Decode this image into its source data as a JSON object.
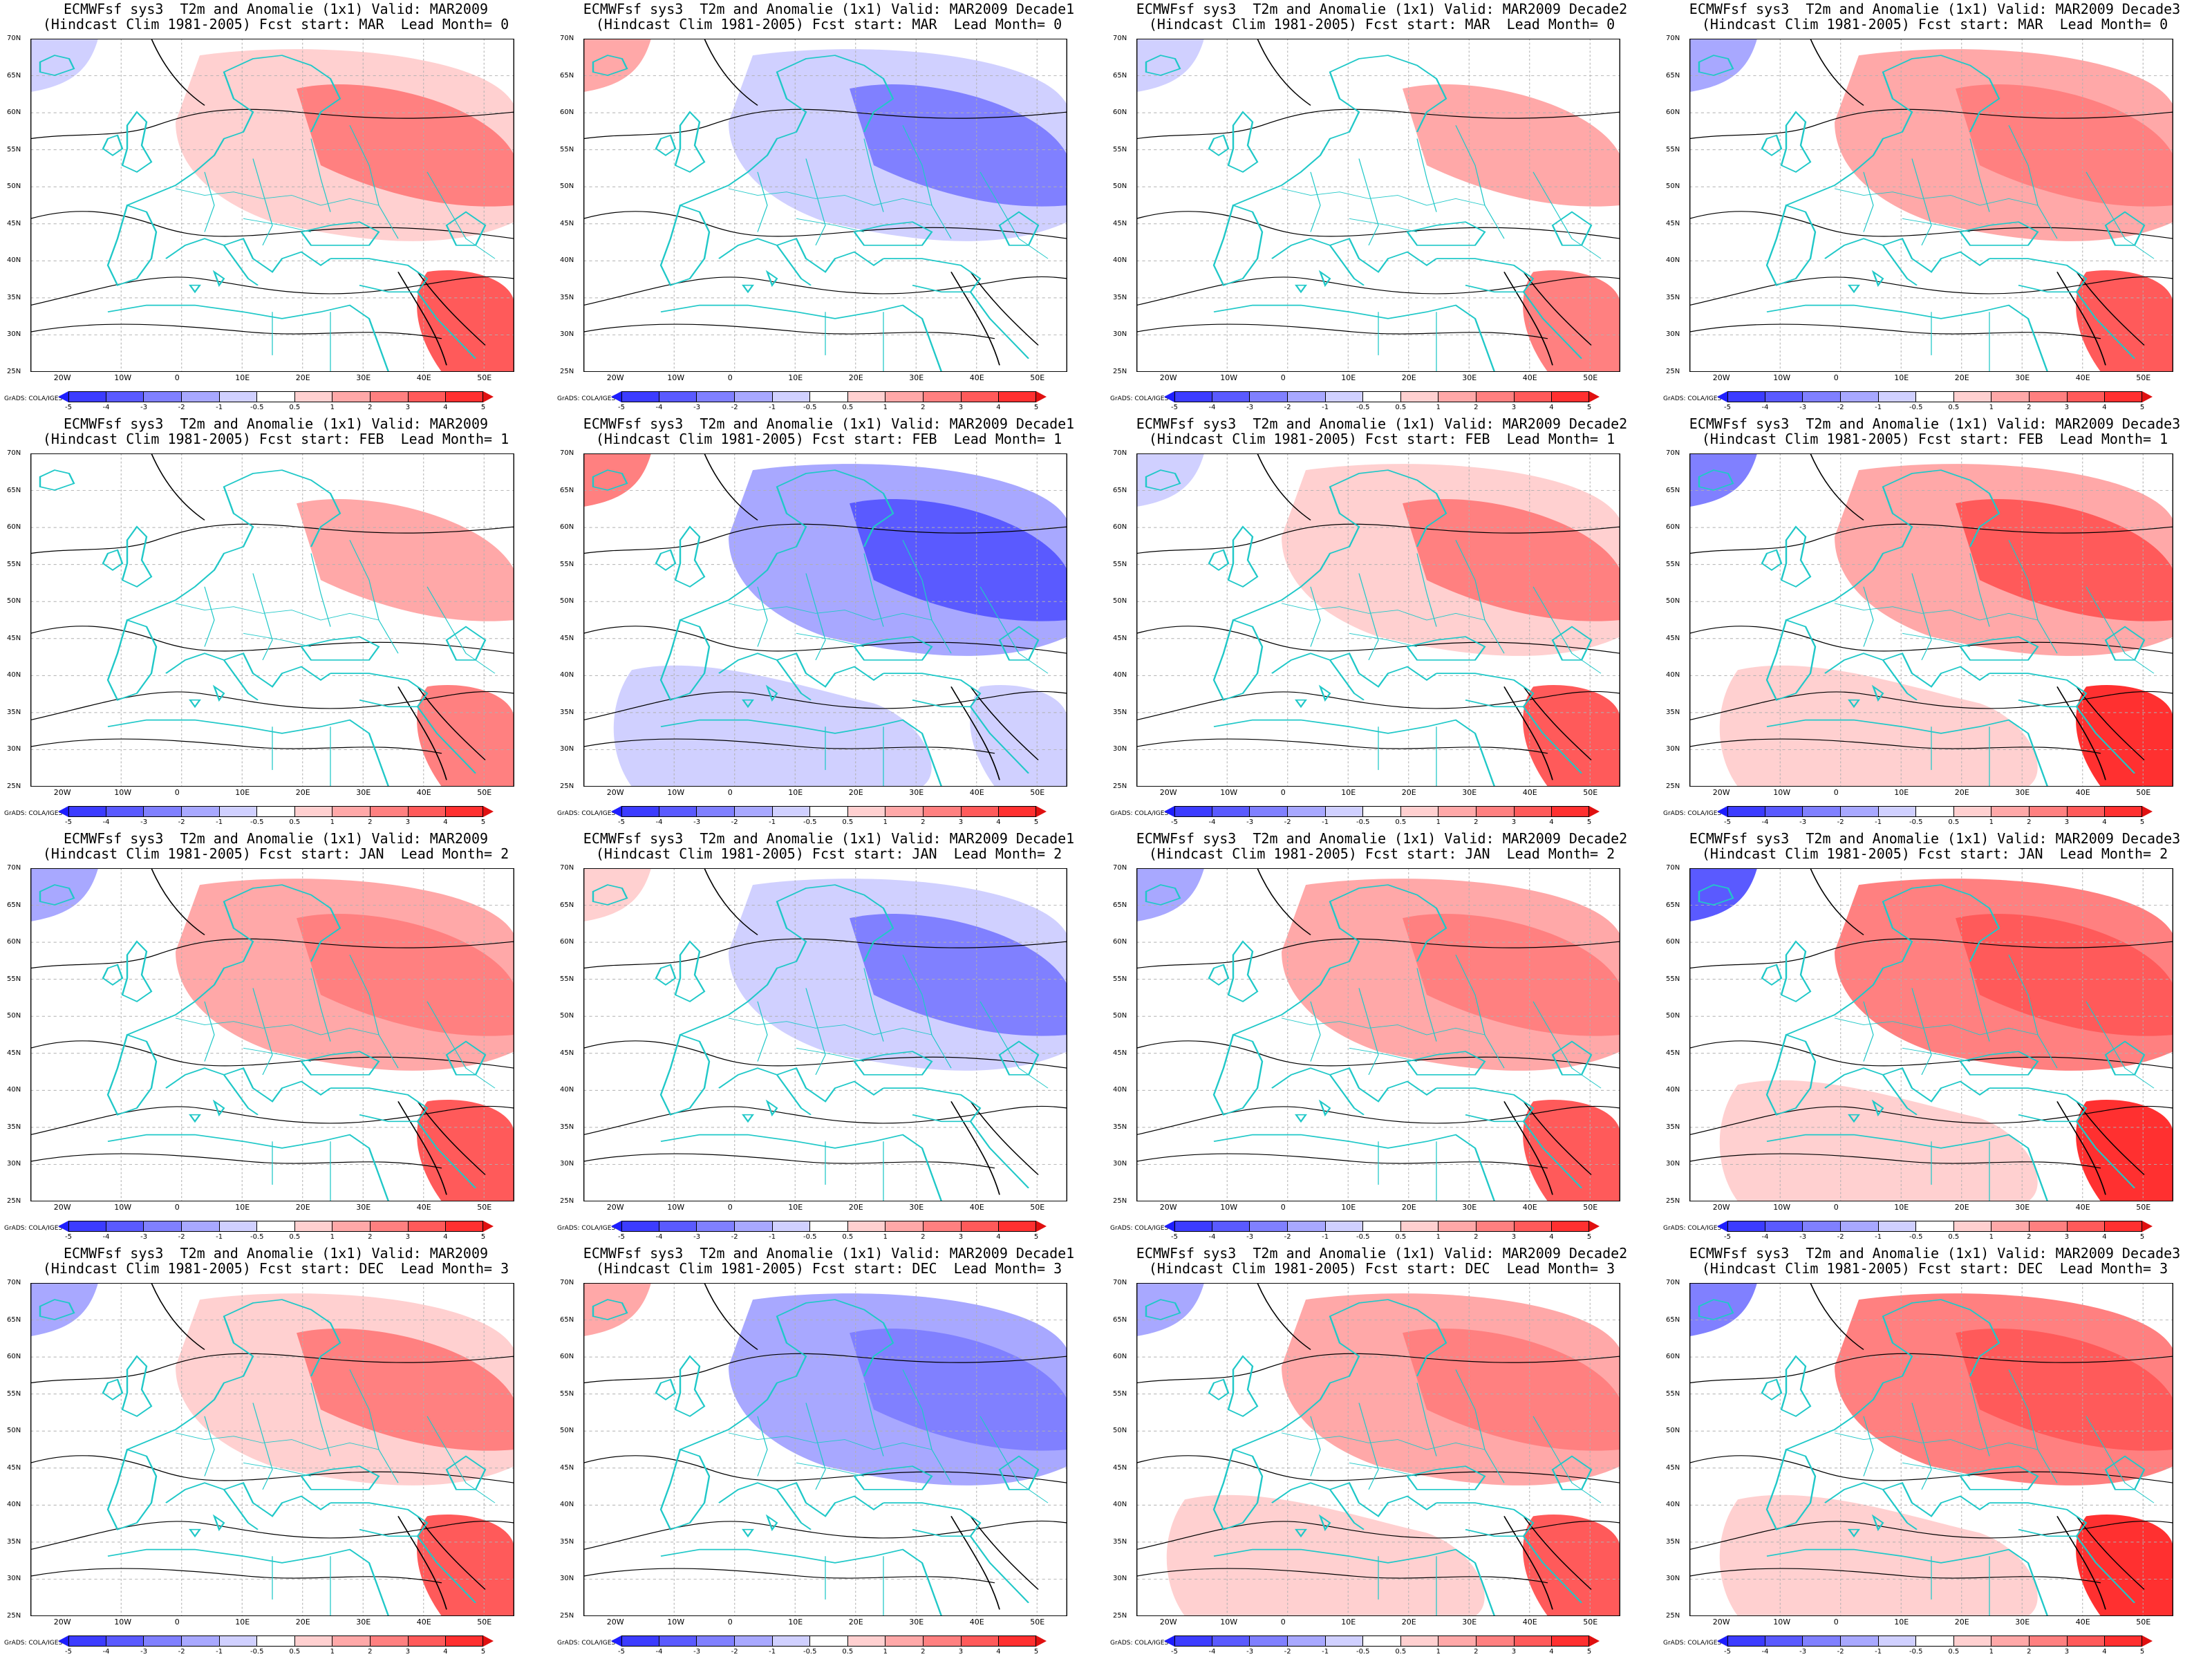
{
  "panels": [
    {
      "title1": "ECMWFsf sys3  T2m and Anomalie (1x1) Valid: MAR2009",
      "title2": "(Hindcast Clim 1981-2005) Fcst start: MAR  Lead Month= 0",
      "anomaly": 0.6
    },
    {
      "title1": "ECMWFsf sys3  T2m and Anomalie (1x1) Valid: MAR2009 Decade1",
      "title2": "(Hindcast Clim 1981-2005) Fcst start: MAR  Lead Month= 0",
      "anomaly": -0.8
    },
    {
      "title1": "ECMWFsf sys3  T2m and Anomalie (1x1) Valid: MAR2009 Decade2",
      "title2": "(Hindcast Clim 1981-2005) Fcst start: MAR  Lead Month= 0",
      "anomaly": 0.4
    },
    {
      "title1": "ECMWFsf sys3  T2m and Anomalie (1x1) Valid: MAR2009 Decade3",
      "title2": "(Hindcast Clim 1981-2005) Fcst start: MAR  Lead Month= 0",
      "anomaly": 1.2
    },
    {
      "title1": "ECMWFsf sys3  T2m and Anomalie (1x1) Valid: MAR2009",
      "title2": "(Hindcast Clim 1981-2005) Fcst start: FEB  Lead Month= 1",
      "anomaly": 0.3
    },
    {
      "title1": "ECMWFsf sys3  T2m and Anomalie (1x1) Valid: MAR2009 Decade1",
      "title2": "(Hindcast Clim 1981-2005) Fcst start: FEB  Lead Month= 1",
      "anomaly": -1.8
    },
    {
      "title1": "ECMWFsf sys3  T2m and Anomalie (1x1) Valid: MAR2009 Decade2",
      "title2": "(Hindcast Clim 1981-2005) Fcst start: FEB  Lead Month= 1",
      "anomaly": 0.5
    },
    {
      "title1": "ECMWFsf sys3  T2m and Anomalie (1x1) Valid: MAR2009 Decade3",
      "title2": "(Hindcast Clim 1981-2005) Fcst start: FEB  Lead Month= 1",
      "anomaly": 1.8
    },
    {
      "title1": "ECMWFsf sys3  T2m and Anomalie (1x1) Valid: MAR2009",
      "title2": "(Hindcast Clim 1981-2005) Fcst start: JAN  Lead Month= 2",
      "anomaly": 1.1
    },
    {
      "title1": "ECMWFsf sys3  T2m and Anomalie (1x1) Valid: MAR2009 Decade1",
      "title2": "(Hindcast Clim 1981-2005) Fcst start: JAN  Lead Month= 2",
      "anomaly": -0.6
    },
    {
      "title1": "ECMWFsf sys3  T2m and Anomalie (1x1) Valid: MAR2009 Decade2",
      "title2": "(Hindcast Clim 1981-2005) Fcst start: JAN  Lead Month= 2",
      "anomaly": 1.2
    },
    {
      "title1": "ECMWFsf sys3  T2m and Anomalie (1x1) Valid: MAR2009 Decade3",
      "title2": "(Hindcast Clim 1981-2005) Fcst start: JAN  Lead Month= 2",
      "anomaly": 2.4
    },
    {
      "title1": "ECMWFsf sys3  T2m and Anomalie (1x1) Valid: MAR2009",
      "title2": "(Hindcast Clim 1981-2005) Fcst start: DEC  Lead Month= 3",
      "anomaly": 0.9
    },
    {
      "title1": "ECMWFsf sys3  T2m and Anomalie (1x1) Valid: MAR2009 Decade1",
      "title2": "(Hindcast Clim 1981-2005) Fcst start: DEC  Lead Month= 3",
      "anomaly": -1.2
    },
    {
      "title1": "ECMWFsf sys3  T2m and Anomalie (1x1) Valid: MAR2009 Decade2",
      "title2": "(Hindcast Clim 1981-2005) Fcst start: DEC  Lead Month= 3",
      "anomaly": 1.3
    },
    {
      "title1": "ECMWFsf sys3  T2m and Anomalie (1x1) Valid: MAR2009 Decade3",
      "title2": "(Hindcast Clim 1981-2005) Fcst start: DEC  Lead Month= 3",
      "anomaly": 2.0
    }
  ],
  "lon_labels": [
    "20W",
    "10W",
    "0",
    "10E",
    "20E",
    "30E",
    "40E",
    "50E"
  ],
  "lat_labels": [
    "70N",
    "65N",
    "60N",
    "55N",
    "50N",
    "45N",
    "40N",
    "35N",
    "30N",
    "25N"
  ],
  "colorbar_labels": [
    "-5",
    "-4",
    "-3",
    "-2",
    "-1",
    "-0.5",
    "0.5",
    "1",
    "2",
    "3",
    "4",
    "5"
  ],
  "colorbar_colors": [
    "#1e1eff",
    "#3c3cff",
    "#5a5aff",
    "#8080ff",
    "#a8a8ff",
    "#d0d0ff",
    "#ffffff",
    "#ffd0d0",
    "#ffa8a8",
    "#ff8080",
    "#ff5a5a",
    "#ff3030",
    "#e01010"
  ],
  "credit": "GrADS: COLA/IGES",
  "colors": {
    "coast": "#20c8c8",
    "contour": "#000000",
    "grid": "#b0b0b0"
  }
}
